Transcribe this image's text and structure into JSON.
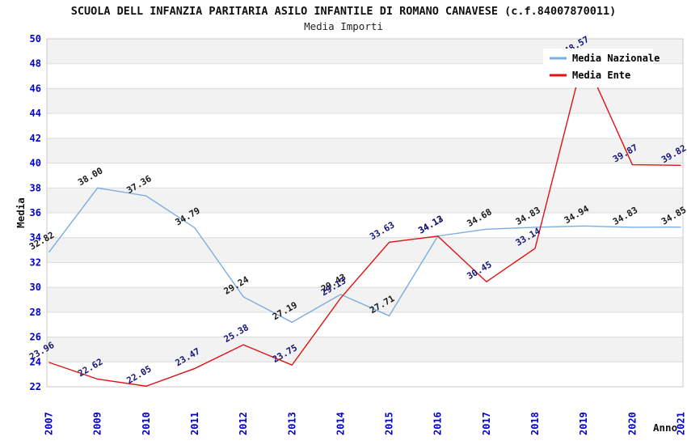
{
  "title": "SCUOLA DELL INFANZIA PARITARIA ASILO INFANTILE DI ROMANO CANAVESE (c.f.84007870011)",
  "subtitle": "Media Importi",
  "legend": {
    "items": [
      {
        "label": "Media Nazionale",
        "color": "#7aade0"
      },
      {
        "label": "Media Ente",
        "color": "#e01212"
      }
    ]
  },
  "chart_data": {
    "type": "line",
    "x": [
      "2007",
      "2009",
      "2010",
      "2011",
      "2012",
      "2013",
      "2014",
      "2015",
      "2016",
      "2017",
      "2018",
      "2019",
      "2020",
      "2021"
    ],
    "series": [
      {
        "name": "Media Nazionale",
        "color": "#7aade0",
        "label_color": "#1a1a1a",
        "values": [
          32.82,
          38.0,
          37.36,
          34.79,
          29.24,
          27.19,
          29.43,
          27.71,
          34.13,
          34.68,
          34.83,
          34.94,
          34.83,
          34.85
        ],
        "labels": [
          "32.82",
          "38.00",
          "37.36",
          "34.79",
          "29.24",
          "27.19",
          "29.43",
          "27.71",
          "34.13",
          "34.68",
          "34.83",
          "34.94",
          "34.83",
          "34.85"
        ]
      },
      {
        "name": "Media Ente",
        "color": "#e01212",
        "label_color": "#16167d",
        "values": [
          23.96,
          22.62,
          22.05,
          23.47,
          25.38,
          23.75,
          29.13,
          33.63,
          34.12,
          30.45,
          33.14,
          48.57,
          39.87,
          39.82
        ],
        "labels": [
          "23.96",
          "22.62",
          "22.05",
          "23.47",
          "25.38",
          "23.75",
          "29.13",
          "33.63",
          "34.12",
          "30.45",
          "33.14",
          "48.57",
          "39.87",
          "39.82"
        ]
      }
    ],
    "xlabel": "Anno",
    "ylabel": "Media",
    "ylim": [
      22,
      50
    ],
    "ytick_step": 2,
    "yticks": [
      "22",
      "24",
      "26",
      "28",
      "30",
      "32",
      "34",
      "36",
      "38",
      "40",
      "42",
      "44",
      "46",
      "48",
      "50"
    ],
    "grid": true,
    "legend_position": "top-right",
    "band_color": "#f2f2f2",
    "gridline_color": "#dcdcdc",
    "frame_color": "#c8c8c8",
    "tick_color": "#0000cc"
  }
}
